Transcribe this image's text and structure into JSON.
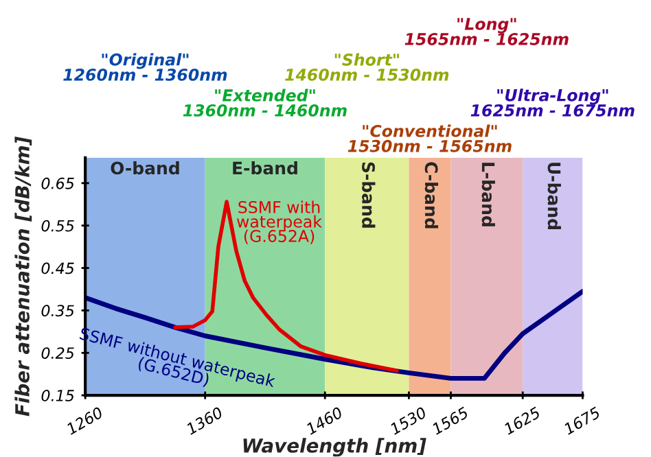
{
  "chart_data": {
    "type": "line",
    "xlabel": "Wavelength [nm]",
    "ylabel": "Fiber attenuation [dB/km]",
    "xlim": [
      1260,
      1675
    ],
    "ylim": [
      0.15,
      0.71
    ],
    "xticks": [
      1260,
      1360,
      1460,
      1530,
      1565,
      1625,
      1675
    ],
    "yticks": [
      {
        "value": 0.15,
        "label": "0.15"
      },
      {
        "value": 0.25,
        "label": "0.25"
      },
      {
        "value": 0.35,
        "label": "0.35"
      },
      {
        "value": 0.45,
        "label": "0.45"
      },
      {
        "value": 0.55,
        "label": "0.55"
      },
      {
        "value": 0.65,
        "label": "0.65"
      }
    ],
    "grid": false,
    "legend": false,
    "marker": "none",
    "line_style": "solid",
    "bands": [
      {
        "axis": "x",
        "from": 1260,
        "to": 1360,
        "label": "O-band",
        "color": "#8fb2e8"
      },
      {
        "axis": "x",
        "from": 1360,
        "to": 1460,
        "label": "E-band",
        "color": "#8ed8a0"
      },
      {
        "axis": "x",
        "from": 1460,
        "to": 1530,
        "label": "S-band",
        "color": "#e2ee98"
      },
      {
        "axis": "x",
        "from": 1530,
        "to": 1565,
        "label": "C-band",
        "color": "#f5b290"
      },
      {
        "axis": "x",
        "from": 1565,
        "to": 1625,
        "label": "L-band",
        "color": "#e8b8c0"
      },
      {
        "axis": "x",
        "from": 1625,
        "to": 1675,
        "label": "U-band",
        "color": "#cfc4f2"
      }
    ],
    "annotations": [
      "\"Original\"\n1260nm - 1360nm",
      "\"Extended\"\n1360nm - 1460nm",
      "\"Short\"\n1460nm - 1530nm",
      "\"Conventional\"\n1530nm - 1565nm",
      "\"Long\"\n1565nm - 1625nm",
      "\"Ultra-Long\"\n1625nm - 1675nm"
    ],
    "series": [
      {
        "name": "SSMF without waterpeak\n(G.652D)",
        "color": "#000080",
        "x": [
          1260,
          1285,
          1310,
          1335,
          1360,
          1410,
          1460,
          1500,
          1530,
          1565,
          1593,
          1610,
          1625,
          1650,
          1675
        ],
        "values": [
          0.38,
          0.355,
          0.333,
          0.31,
          0.29,
          0.262,
          0.235,
          0.215,
          0.203,
          0.19,
          0.19,
          0.25,
          0.295,
          0.345,
          0.395
        ]
      },
      {
        "name": "SSMF with\nwaterpeak\n(G.652A)",
        "color": "#e00000",
        "x": [
          1335,
          1350,
          1360,
          1366,
          1371,
          1378,
          1386,
          1393,
          1400,
          1411,
          1422,
          1440,
          1460,
          1490,
          1520
        ],
        "values": [
          0.31,
          0.312,
          0.327,
          0.348,
          0.5,
          0.606,
          0.49,
          0.42,
          0.38,
          0.34,
          0.305,
          0.265,
          0.245,
          0.225,
          0.208
        ]
      }
    ]
  }
}
